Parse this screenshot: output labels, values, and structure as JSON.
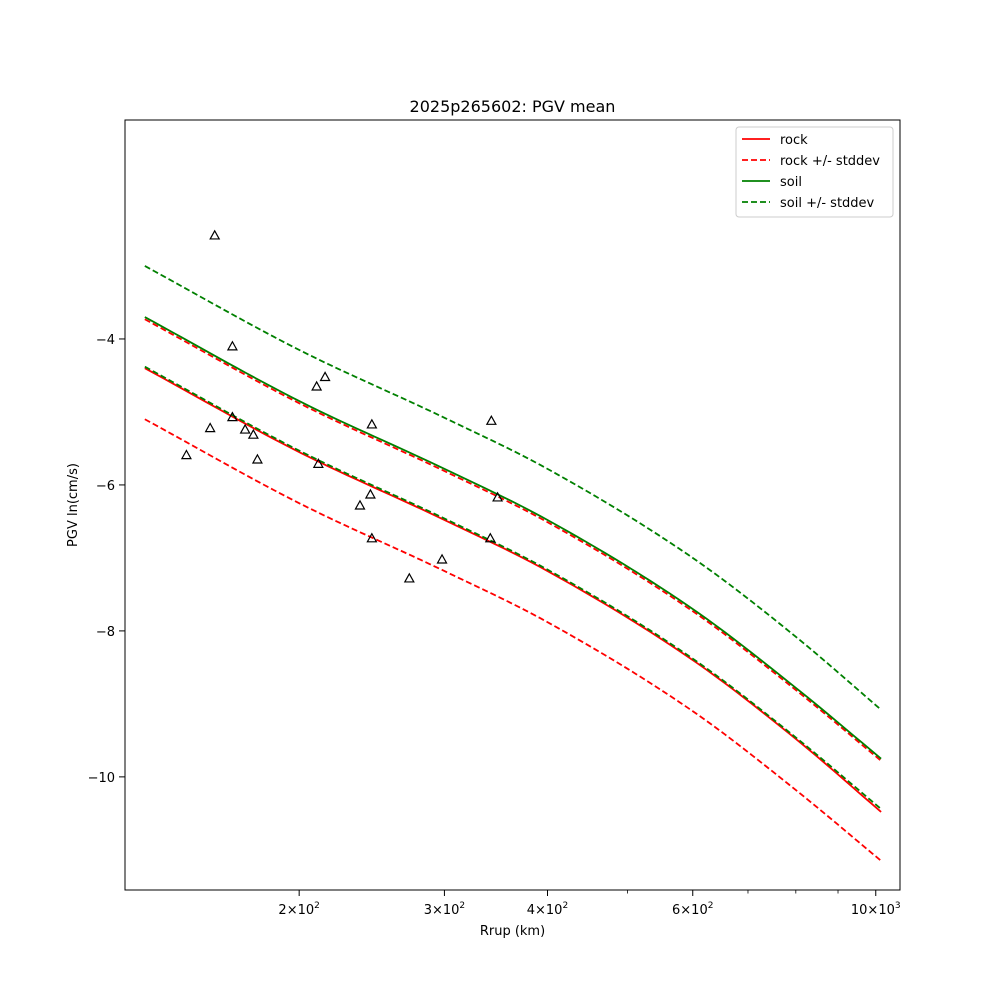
{
  "chart_data": {
    "type": "line",
    "title": "2025p265602: PGV mean",
    "xlabel": "Rrup (km)",
    "ylabel": "PGV ln(cm/s)",
    "xscale": "log",
    "xlim": [
      123,
      1070
    ],
    "ylim": [
      -11.55,
      -1.0
    ],
    "x_ticks": [
      {
        "value": 200,
        "base": "2",
        "exp": "2"
      },
      {
        "value": 300,
        "base": "3",
        "exp": "2"
      },
      {
        "value": 400,
        "base": "4",
        "exp": "2"
      },
      {
        "value": 600,
        "base": "6",
        "exp": "2"
      },
      {
        "value": 1000,
        "base": "10",
        "exp": "3"
      }
    ],
    "y_ticks": [
      {
        "value": -4,
        "label": "−4"
      },
      {
        "value": -6,
        "label": "−6"
      },
      {
        "value": -8,
        "label": "−8"
      },
      {
        "value": -10,
        "label": "−10"
      }
    ],
    "legend_position": "top-right",
    "grid": false,
    "series": [
      {
        "name": "rock",
        "color": "#ff0000",
        "style": "solid",
        "x": [
          130,
          200,
          300,
          400,
          600,
          800,
          1015
        ],
        "y": [
          -4.4,
          -5.55,
          -6.48,
          -7.18,
          -8.4,
          -9.48,
          -10.48
        ]
      },
      {
        "name": "",
        "color": "#ff0000",
        "style": "dashed",
        "x": [
          130,
          200,
          300,
          400,
          600,
          800,
          1015
        ],
        "y": [
          -3.73,
          -4.88,
          -5.81,
          -6.51,
          -7.73,
          -8.81,
          -9.78
        ]
      },
      {
        "name": "rock +/- stddev",
        "color": "#ff0000",
        "style": "dashed",
        "x": [
          130,
          200,
          300,
          400,
          600,
          800,
          1015
        ],
        "y": [
          -5.1,
          -6.25,
          -7.18,
          -7.88,
          -9.1,
          -10.18,
          -11.15
        ]
      },
      {
        "name": "soil",
        "color": "#008000",
        "style": "solid",
        "x": [
          130,
          200,
          300,
          400,
          600,
          800,
          1015
        ],
        "y": [
          -3.7,
          -4.85,
          -5.78,
          -6.48,
          -7.7,
          -8.78,
          -9.75
        ]
      },
      {
        "name": "",
        "color": "#008000",
        "style": "dashed",
        "x": [
          130,
          200,
          300,
          400,
          600,
          800,
          1015
        ],
        "y": [
          -4.38,
          -5.53,
          -6.46,
          -7.16,
          -8.38,
          -9.46,
          -10.44
        ]
      },
      {
        "name": "soil +/- stddev",
        "color": "#008000",
        "style": "dashed",
        "x": [
          130,
          200,
          300,
          400,
          600,
          800,
          1015
        ],
        "y": [
          -3.0,
          -4.15,
          -5.08,
          -5.78,
          -7.0,
          -8.08,
          -9.08
        ]
      }
    ],
    "scatter": {
      "color": "#000000",
      "marker": "triangle",
      "points": [
        [
          158,
          -2.58
        ],
        [
          166,
          -4.1
        ],
        [
          156,
          -5.22
        ],
        [
          166,
          -5.07
        ],
        [
          172,
          -5.24
        ],
        [
          176,
          -5.31
        ],
        [
          146,
          -5.59
        ],
        [
          178,
          -5.65
        ],
        [
          210,
          -4.65
        ],
        [
          215,
          -4.52
        ],
        [
          211,
          -5.71
        ],
        [
          245,
          -5.17
        ],
        [
          237,
          -6.28
        ],
        [
          244,
          -6.13
        ],
        [
          245,
          -6.73
        ],
        [
          272,
          -7.28
        ],
        [
          298,
          -7.02
        ],
        [
          342,
          -5.12
        ],
        [
          348,
          -6.17
        ],
        [
          341,
          -6.73
        ]
      ]
    }
  }
}
